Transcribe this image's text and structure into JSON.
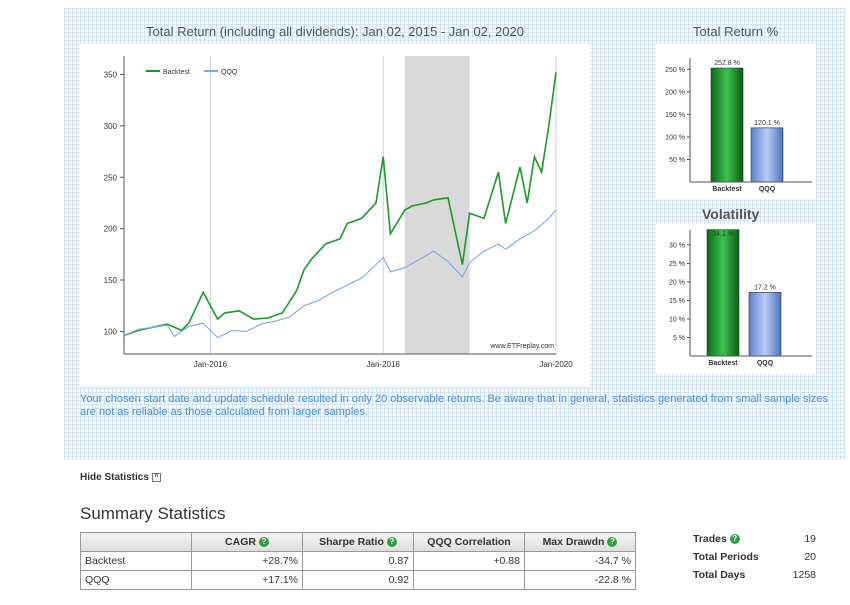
{
  "main_title": "Total Return (including all dividends): Jan 02, 2015 - Jan 02, 2020",
  "tr_title": "Total Return %",
  "vol_title": "Volatility",
  "notice": "Your chosen start date and update schedule resulted in only 20 observable returns. Be aware that in general, statistics generated from small sample sizes are not as reliable as those calculated from larger samples.",
  "hide_stats_label": "Hide Statistics",
  "summary_title": "Summary Statistics",
  "colors": {
    "backtest": "#1a9a2a",
    "qqq": "#7da7e8"
  },
  "chart_data": [
    {
      "type": "line",
      "title": "Total Return (including all dividends): Jan 02, 2015 - Jan 02, 2020",
      "legend": [
        "Backtest",
        "QQQ"
      ],
      "legend_position": "top-left",
      "x_range": [
        "2015-01-02",
        "2020-01-02"
      ],
      "x_ticks": [
        "Jan-2016",
        "Jan-2018",
        "Jan-2020"
      ],
      "y_ticks": [
        100,
        150,
        200,
        250,
        300,
        350
      ],
      "ylim": [
        78,
        368
      ],
      "watermark": "www.ETFreplay.com",
      "shaded_region": [
        "2018-04",
        "2019-01"
      ],
      "series": [
        {
          "name": "Backtest",
          "x": [
            "2015-01",
            "2015-03",
            "2015-05",
            "2015-07",
            "2015-09",
            "2015-10",
            "2015-12",
            "2016-02",
            "2016-03",
            "2016-05",
            "2016-07",
            "2016-09",
            "2016-11",
            "2017-01",
            "2017-02",
            "2017-03",
            "2017-05",
            "2017-07",
            "2017-08",
            "2017-10",
            "2017-12",
            "2018-01",
            "2018-02",
            "2018-04",
            "2018-05",
            "2018-07",
            "2018-08",
            "2018-10",
            "2018-12",
            "2019-01",
            "2019-03",
            "2019-05",
            "2019-06",
            "2019-08",
            "2019-09",
            "2019-10",
            "2019-11",
            "2019-12",
            "2020-01"
          ],
          "y": [
            96,
            101,
            104,
            107,
            101,
            108,
            138,
            112,
            118,
            120,
            112,
            113,
            118,
            140,
            160,
            170,
            185,
            190,
            205,
            210,
            225,
            270,
            195,
            218,
            222,
            225,
            228,
            230,
            165,
            215,
            210,
            255,
            205,
            260,
            225,
            270,
            255,
            300,
            352
          ]
        },
        {
          "name": "QQQ",
          "x": [
            "2015-01",
            "2015-03",
            "2015-05",
            "2015-07",
            "2015-08",
            "2015-10",
            "2015-12",
            "2016-02",
            "2016-04",
            "2016-06",
            "2016-08",
            "2016-10",
            "2016-12",
            "2017-02",
            "2017-04",
            "2017-06",
            "2017-08",
            "2017-10",
            "2017-12",
            "2018-01",
            "2018-02",
            "2018-04",
            "2018-06",
            "2018-08",
            "2018-10",
            "2018-12",
            "2019-01",
            "2019-03",
            "2019-05",
            "2019-06",
            "2019-08",
            "2019-10",
            "2019-12",
            "2020-01"
          ],
          "y": [
            96,
            102,
            104,
            106,
            95,
            105,
            108,
            94,
            101,
            100,
            107,
            110,
            114,
            125,
            130,
            138,
            145,
            152,
            165,
            172,
            158,
            162,
            170,
            178,
            168,
            153,
            167,
            178,
            185,
            180,
            190,
            198,
            210,
            218
          ]
        }
      ]
    },
    {
      "type": "bar",
      "title": "Total Return %",
      "categories": [
        "Backtest",
        "QQQ"
      ],
      "values": [
        252.8,
        120.1
      ],
      "value_labels": [
        "252.8 %",
        "120.1 %"
      ],
      "y_ticks": [
        "50 %",
        "100 %",
        "150 %",
        "200 %",
        "250 %"
      ],
      "ylim": [
        0,
        275
      ]
    },
    {
      "type": "bar",
      "title": "Volatility",
      "categories": [
        "Backtest",
        "QQQ"
      ],
      "values": [
        34.1,
        17.2
      ],
      "value_labels": [
        "34.1 %",
        "17.2 %"
      ],
      "y_ticks": [
        "5 %",
        "10 %",
        "15 %",
        "20 %",
        "25 %",
        "30 %"
      ],
      "ylim": [
        0,
        34
      ]
    }
  ],
  "stats_table": {
    "headers": [
      "",
      "CAGR",
      "Sharpe Ratio",
      "QQQ Correlation",
      "Max Drawdn"
    ],
    "rows": [
      [
        "Backtest",
        "+28.7%",
        "0.87",
        "+0.88",
        "-34.7 %"
      ],
      [
        "QQQ",
        "+17.1%",
        "0.92",
        "",
        "-22.8 %"
      ]
    ]
  },
  "side_stats": [
    {
      "label": "Trades",
      "value": "19"
    },
    {
      "label": "Total Periods",
      "value": "20"
    },
    {
      "label": "Total Days",
      "value": "1258"
    }
  ]
}
